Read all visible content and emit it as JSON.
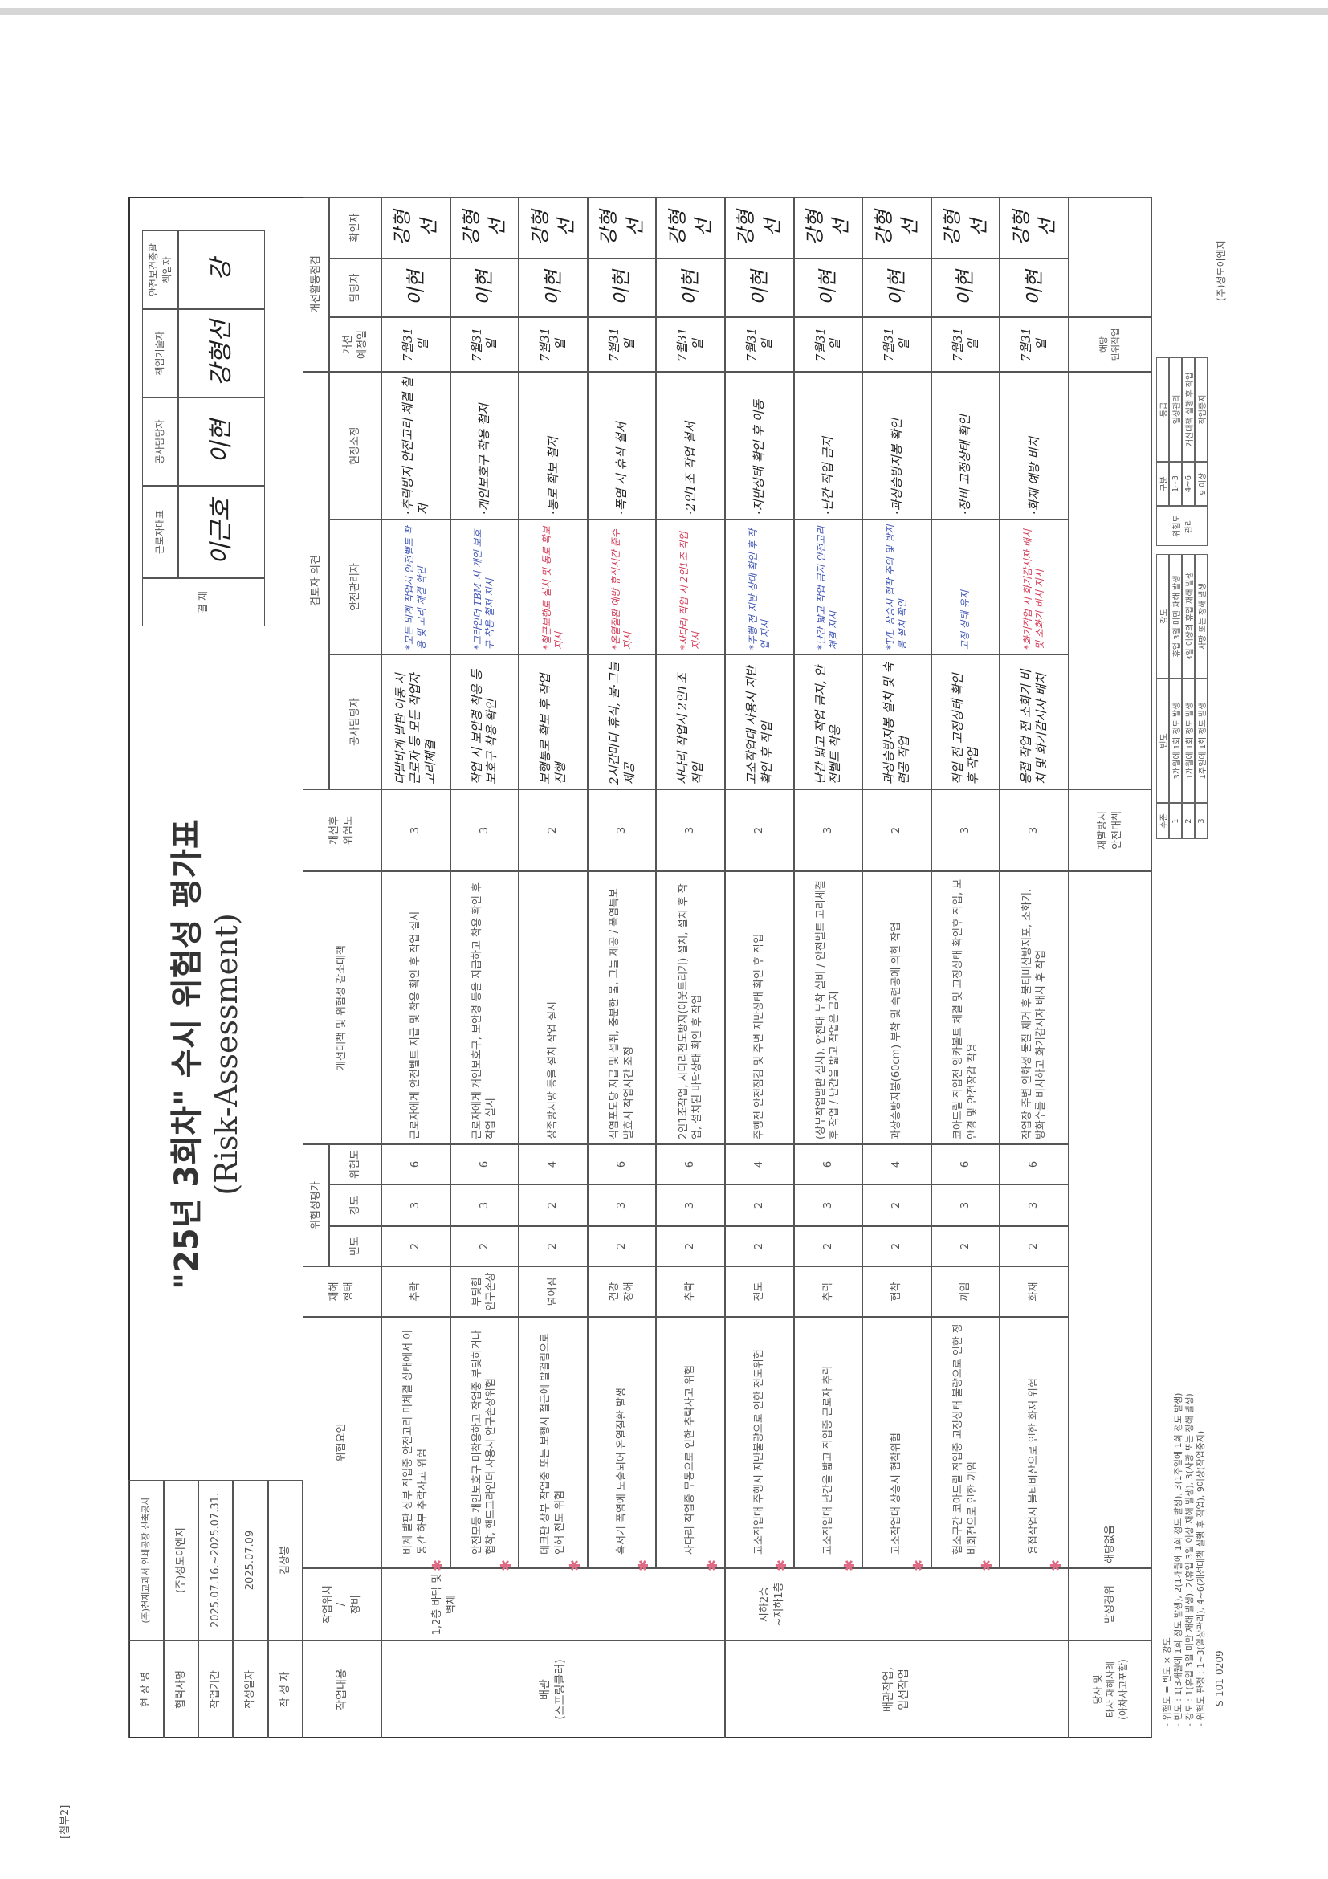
{
  "attachment_label": "[첨부2]",
  "title": "\"25년 3회차\" 수시 위험성 평가표",
  "subtitle": "(Risk-Assessment)",
  "info": {
    "site_label": "현 장 명",
    "site_value": "(주)천재교과서 인쇄공장 신축공사",
    "partner_label": "협력사명",
    "partner_value": "(주)성도이엔지",
    "period_label": "작업기간",
    "period_value": "2025.07.16.~2025.07.31.",
    "date_label": "작성일자",
    "date_value": "2025.07.09",
    "author_label": "작 성 자",
    "author_value": "김상봉"
  },
  "approval": {
    "label": "결 재",
    "columns": [
      {
        "title": "근로자대표",
        "signature": "이근호"
      },
      {
        "title": "공사담당자",
        "signature": "이현"
      },
      {
        "title": "책임기술자",
        "signature": "강형선"
      },
      {
        "title": "안전보건총괄\n책임자",
        "signature": "강"
      }
    ]
  },
  "headers": {
    "work": "작업내용",
    "location": "작업위치\n/\n장비",
    "hazard": "위험요인",
    "accident_type": "재해\n형태",
    "risk_group": "위험성평가",
    "frequency": "빈도",
    "severity": "강도",
    "risk": "위험도",
    "measures": "개선대책 및 위험성 감소대책",
    "residual": "개선후\n위험도",
    "review_group": "검토자 의견",
    "construction_mgr": "공사담당자",
    "safety_mgr": "안전관리자",
    "site_mgr": "현장소장",
    "check_group": "개선활동점검",
    "due_date": "개선\n예정일",
    "owner": "담당자",
    "checker": "확인자"
  },
  "groups": [
    {
      "work": "배관\n(스프링클러)",
      "location": "1,2층 바닥 및 벽체"
    },
    {
      "work": "배관작업,\n입선작업",
      "location": "지하2층\n~지하1층"
    }
  ],
  "rows": [
    {
      "hazard": "비계 발판 상부 작업중 안전고리 미체결 상태에서 이동간 하부 추락사고 위험",
      "type": "추락",
      "freq": "2",
      "sev": "3",
      "risk": "6",
      "measure": "근로자에게 안전벨트 지급 및 착용 확인 후 작업 실시",
      "residual": "3",
      "construction": "다발비계 발판 이동 시 근로자 등 모든 작업자 고리체결",
      "safety": "*모든 비계 작업시 안전벨트 착용 및 고리 체결 확인",
      "safety_color": "blue",
      "site": "·추락방지 안전고리 체결 철저",
      "due": "7월31일",
      "owner": "이현",
      "checker": "강형선"
    },
    {
      "hazard": "안전모등 개인보호구 미착용하고 작업중 부딪히거나 협착, 핸드그라인더 사용시 안구손상위험",
      "type": "부딪힘\n안구손상",
      "freq": "2",
      "sev": "3",
      "risk": "6",
      "measure": "근로자에게 개인보호구, 보안경 등을 지급하고 착용 확인 후 작업 실시",
      "residual": "3",
      "construction": "작업 시 보안경 착용 등 보호구 착용 확인",
      "safety": "*그라인더 TBM 시 개인 보호구 착용 철저 지시",
      "safety_color": "blue",
      "site": "·개인보호구 착용 철저",
      "due": "7월31일",
      "owner": "이현",
      "checker": "강형선"
    },
    {
      "hazard": "데크판 상부 작업중 또는 보행시 철근에 발걸림으로 인해 전도 위험",
      "type": "넘어짐",
      "freq": "2",
      "sev": "2",
      "risk": "4",
      "measure": "상족방지망 등을 설치 작업 실시",
      "residual": "2",
      "construction": "보행통로 확보 후 작업 진행",
      "safety": "*철근보행로 설치 및 통로 확보 지시",
      "safety_color": "red",
      "site": "·통로 확보 철저",
      "due": "7월31일",
      "owner": "이현",
      "checker": "강형선"
    },
    {
      "hazard": "혹서기 폭염에 노출되어 온열질환 발생",
      "type": "건강\n장해",
      "freq": "2",
      "sev": "3",
      "risk": "6",
      "measure": "식염포도당 지급 및 섭취, 충분한 물, 그늘 제공 / 폭염특보 발효시 작업시간 조정",
      "residual": "3",
      "construction": "2시간마다 휴식, 물·그늘 제공",
      "safety": "*온열질환 예방 휴식시간 준수 지시",
      "safety_color": "red",
      "site": "·폭염 시 휴식 철저",
      "due": "7월31일",
      "owner": "이현",
      "checker": "강형선"
    },
    {
      "hazard": "사다리 작업중 무동으로 인한 추락사고 위험",
      "type": "추락",
      "freq": "2",
      "sev": "3",
      "risk": "6",
      "measure": "2인1조작업, 사다리전도방지(아웃트리거) 설치, 설치 후 작업, 설치된 바닥상태 확인 후 작업",
      "residual": "3",
      "construction": "사다리 작업시 2인1조 작업",
      "safety": "*사다리 작업 시 2인1조 작업 지시",
      "safety_color": "red",
      "site": "·2인1조 작업 철저",
      "due": "7월31일",
      "owner": "이현",
      "checker": "강형선"
    },
    {
      "hazard": "고소작업대 주행시 지반불량으로 인한 전도위험",
      "type": "전도",
      "freq": "2",
      "sev": "2",
      "risk": "4",
      "measure": "주행전 안전점검 및 주변 지반상태 확인 후 작업",
      "residual": "2",
      "construction": "고소작업대 사용시 지반 확인 후 작업",
      "safety": "*주행 전 지반 상태 확인 후 작업 지시",
      "safety_color": "blue",
      "site": "·지반상태 확인 후 이동",
      "due": "7월31일",
      "owner": "이현",
      "checker": "강형선"
    },
    {
      "hazard": "고소작업대 난간을 밟고 작업중 근로자 추락",
      "type": "추락",
      "freq": "2",
      "sev": "3",
      "risk": "6",
      "measure": "(상부작업발판 설치), 안전대 부착 설비 / 안전벨트 고리체결 후 작업 / 난간을 밟고 작업은 금지",
      "residual": "3",
      "construction": "난간 밟고 작업 금지, 안전벨트 착용",
      "safety": "*난간 밟고 작업 금지 안전고리 체결 지시",
      "safety_color": "blue",
      "site": "·난간 작업 금지",
      "due": "7월31일",
      "owner": "이현",
      "checker": "강형선"
    },
    {
      "hazard": "고소작업대 상승시 협착위험",
      "type": "협착",
      "freq": "2",
      "sev": "2",
      "risk": "4",
      "measure": "과상승방지봉(60cm) 부착 및 숙련공에 의한 작업",
      "residual": "2",
      "construction": "과상승방지봉 설치 및 숙련공 작업",
      "safety": "*T/L 상승시 협착 주의 및 방지봉 설치 확인",
      "safety_color": "blue",
      "site": "·과상승방지봉 확인",
      "due": "7월31일",
      "owner": "이현",
      "checker": "강형선"
    },
    {
      "hazard": "협소구간 코아드릴 작업중 고정상태 불량으로 인한 장비회전으로 인한 끼임",
      "type": "끼임",
      "freq": "2",
      "sev": "3",
      "risk": "6",
      "measure": "코아드릴 작업전 앙카볼트 체결 및 고정상태 확인후 작업, 보안경 및 안전장갑 착용",
      "residual": "3",
      "construction": "작업 전 고정상태 확인 후 작업",
      "safety": "고정 상태 유지",
      "safety_color": "blue",
      "site": "·장비 고정상태 확인",
      "due": "7월31일",
      "owner": "이현",
      "checker": "강형선"
    },
    {
      "hazard": "용접작업시 불티비산으로 인한 화재 위험",
      "type": "화재",
      "freq": "2",
      "sev": "3",
      "risk": "6",
      "measure": "작업장 주변 인화성 물질 제거 후 불티비산방지포, 소화기, 방화수를 비치하고 화기감시자 배치 후 작업",
      "residual": "3",
      "construction": "용접 작업 전 소화기 비치 및 화기감시자 배치",
      "safety": "*화기작업 시 화기감시자 배치 및 소화기 비치 지시",
      "safety_color": "red",
      "site": "·화재 예방 비치",
      "due": "7월31일",
      "owner": "이현",
      "checker": "강형선"
    }
  ],
  "case_row": {
    "label": "당사 및\n타사 재해사례\n(아차사고포함)",
    "occurrence_label": "발생경위",
    "occurrence_value": "해당없음",
    "prevention_label": "재발방지\n안전대책",
    "unit_label": "해당\n단위작업"
  },
  "notes": [
    "- 위험도 = 빈도 × 강도",
    "- 빈도 : 1(3개월에 1회 정도 발생), 2(1개월에 1회 정도 발생), 3(1주일에 1회 정도 발생)",
    "- 강도 : 1(휴업 3일 미만 재해 발생), 2(휴업 3일 이상 재해 발생), 3(사망 또는 장해 발생)",
    "- 위험도 판정 : 1~3(일상관리), 4~6(개선대책 실행 후 작업), 9이상(작업중지)"
  ],
  "legend": {
    "level_header": "수준",
    "freq_header": "빈도",
    "sev_header": "강도",
    "levels": [
      {
        "level": "1",
        "freq": "3개월에 1회 정도 발생",
        "sev": "휴업 3일 미만 재해 발생"
      },
      {
        "level": "2",
        "freq": "1개월에 1회 정도 발생",
        "sev": "3일 이상의 휴업 재해 발생"
      },
      {
        "level": "3",
        "freq": "1주일에 1회 정도 발생",
        "sev": "사망 또는 장해 발생"
      }
    ],
    "mgmt_label": "위험도\n관리",
    "class_header": "구분",
    "grade_header": "등급",
    "grades": [
      {
        "range": "1~3",
        "grade": "일상관리"
      },
      {
        "range": "4~6",
        "grade": "개선대책 실행 후 작업"
      },
      {
        "range": "9 이상",
        "grade": "작업중지"
      }
    ]
  },
  "form_code": "S-101-0209",
  "company_footer": "(주)성도이엔지",
  "colors": {
    "border": "#555555",
    "handwriting_blue": "#3f55b5",
    "handwriting_red": "#d03a56",
    "stamp_mark": "#e06a84"
  }
}
